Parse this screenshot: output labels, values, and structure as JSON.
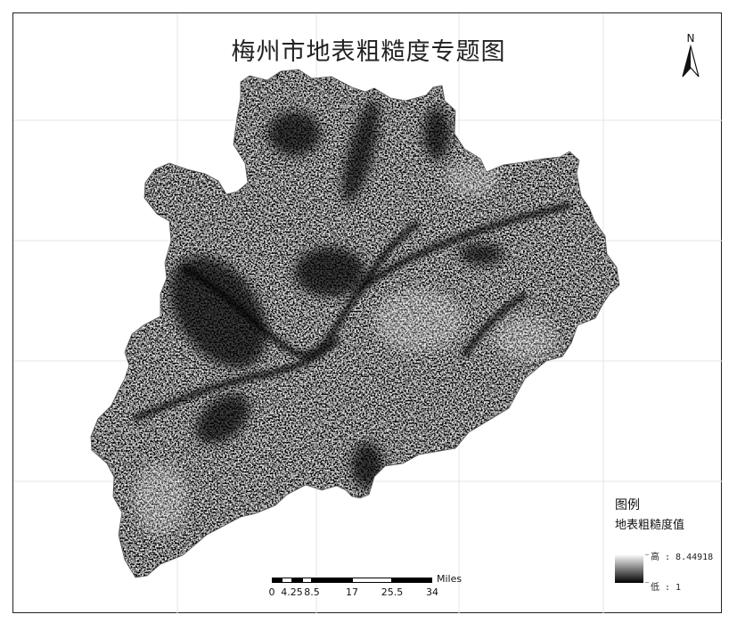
{
  "map": {
    "title": "梅州市地表粗糙度专题图",
    "north_label": "N"
  },
  "legend": {
    "title": "图例",
    "field": "地表粗糙度值",
    "high_label": "高 : 8.44918",
    "low_label": "低 : 1",
    "high_value": 8.44918,
    "low_value": 1,
    "ramp_colors": [
      "#ffffff",
      "#000000"
    ]
  },
  "scale_bar": {
    "unit": "Miles",
    "labels": [
      "0",
      "4.25",
      "8.5",
      "17",
      "25.5",
      "34"
    ],
    "values": [
      0,
      4.25,
      8.5,
      17,
      25.5,
      34
    ]
  },
  "colors": {
    "frame": "#222222",
    "grid": "#e6e6e6",
    "terrain_dark": "#111111",
    "terrain_light": "#f2f2f2"
  }
}
